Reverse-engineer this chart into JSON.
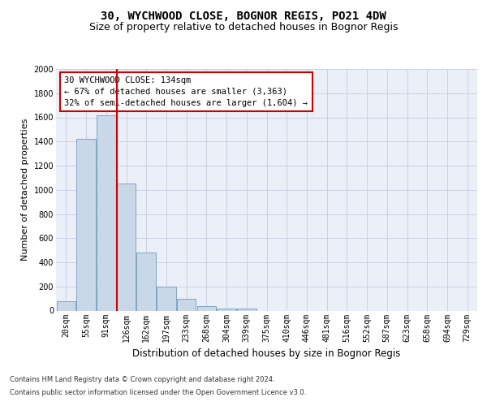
{
  "title1": "30, WYCHWOOD CLOSE, BOGNOR REGIS, PO21 4DW",
  "title2": "Size of property relative to detached houses in Bognor Regis",
  "xlabel": "Distribution of detached houses by size in Bognor Regis",
  "ylabel": "Number of detached properties",
  "categories": [
    "20sqm",
    "55sqm",
    "91sqm",
    "126sqm",
    "162sqm",
    "197sqm",
    "233sqm",
    "268sqm",
    "304sqm",
    "339sqm",
    "375sqm",
    "410sqm",
    "446sqm",
    "481sqm",
    "516sqm",
    "552sqm",
    "587sqm",
    "623sqm",
    "658sqm",
    "694sqm",
    "729sqm"
  ],
  "values": [
    75,
    1420,
    1620,
    1050,
    480,
    200,
    100,
    35,
    20,
    15,
    0,
    0,
    0,
    0,
    0,
    0,
    0,
    0,
    0,
    0,
    0
  ],
  "bar_color": "#c8d8e8",
  "bar_edge_color": "#7799bb",
  "redline_x": 3,
  "annotation_text": "30 WYCHWOOD CLOSE: 134sqm\n← 67% of detached houses are smaller (3,363)\n32% of semi-detached houses are larger (1,604) →",
  "annotation_box_color": "#ffffff",
  "annotation_box_edge": "#cc0000",
  "redline_color": "#cc0000",
  "footer1": "Contains HM Land Registry data © Crown copyright and database right 2024.",
  "footer2": "Contains public sector information licensed under the Open Government Licence v3.0.",
  "ylim": [
    0,
    2000
  ],
  "yticks": [
    0,
    200,
    400,
    600,
    800,
    1000,
    1200,
    1400,
    1600,
    1800,
    2000
  ],
  "grid_color": "#c8cce0",
  "bg_color": "#eaeff8",
  "title_fontsize": 10,
  "subtitle_fontsize": 9,
  "tick_fontsize": 7,
  "ylabel_fontsize": 8,
  "xlabel_fontsize": 8.5,
  "ann_fontsize": 7.5,
  "footer_fontsize": 6
}
